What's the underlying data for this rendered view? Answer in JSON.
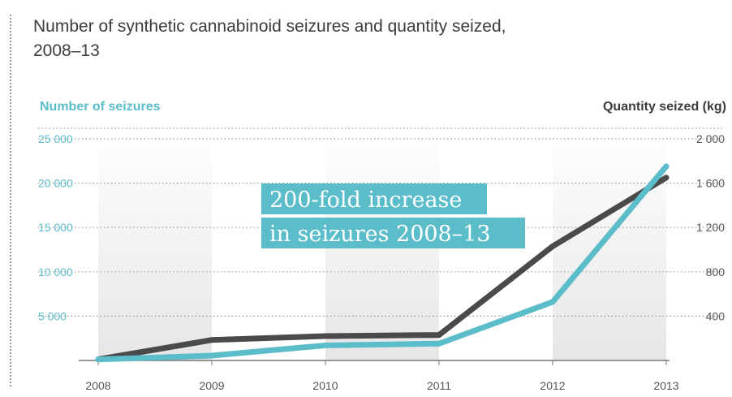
{
  "title_lines": [
    "Number of synthetic cannabinoid seizures and quantity seized,",
    "2008–13"
  ],
  "colors": {
    "seizures": "#5bbdca",
    "quantity": "#4a4a4a",
    "band": "#e6e6e6",
    "tick_left": "#5bbdca",
    "tick_right": "#555555"
  },
  "annotation": {
    "lines": [
      "200-fold increase",
      "in seizures 2008–13"
    ],
    "color": "#5bbdca"
  },
  "chart_data": {
    "type": "line",
    "x": [
      "2008",
      "2009",
      "2010",
      "2011",
      "2012",
      "2013"
    ],
    "left_axis": {
      "label": "Number of seizures",
      "range": [
        0,
        25000
      ],
      "ticks": [
        5000,
        10000,
        15000,
        20000,
        25000
      ],
      "tick_labels": [
        "5 000",
        "10 000",
        "15 000",
        "20 000",
        "25 000"
      ]
    },
    "right_axis": {
      "label": "Quantity seized (kg)",
      "range": [
        0,
        2000
      ],
      "ticks": [
        400,
        800,
        1200,
        1600,
        2000
      ],
      "tick_labels": [
        "400",
        "800",
        "1 200",
        "1 600",
        "2 000"
      ]
    },
    "series": [
      {
        "axis": "right",
        "color": "#4a4a4a",
        "values": [
          10,
          185,
          220,
          230,
          1030,
          1650
        ]
      },
      {
        "axis": "left",
        "color": "#5bbdca",
        "values": [
          120,
          550,
          1700,
          1900,
          6600,
          21900
        ]
      }
    ],
    "grid": "dotted",
    "bands": "alternating"
  }
}
